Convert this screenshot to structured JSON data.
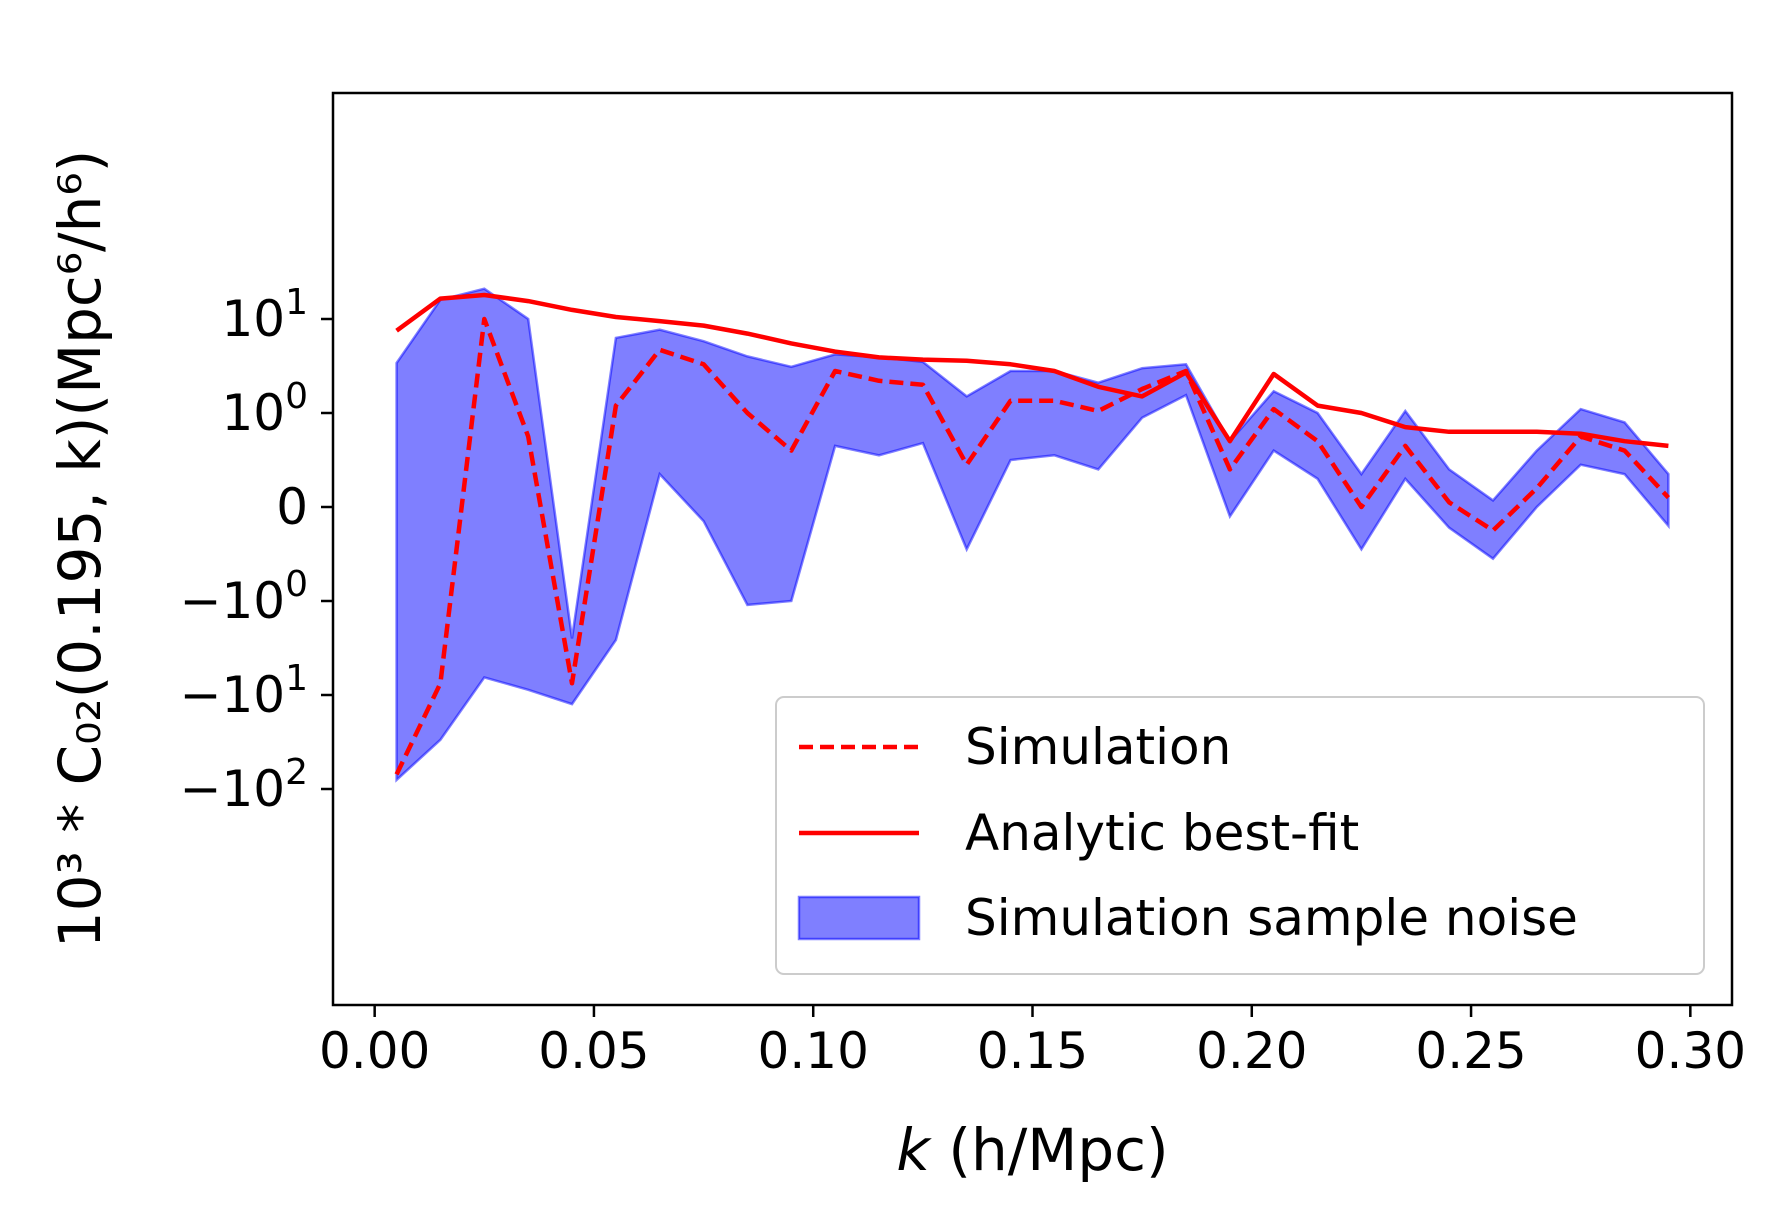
{
  "chart_data": {
    "type": "line",
    "title": "",
    "xlabel_var": "k",
    "xlabel_unit": " (h/Mpc)",
    "ylabel": "10³ * C₀₂(0.195, k)(Mpc⁶/h⁶)",
    "xlim": [
      -0.0095,
      0.3095
    ],
    "x_scale": "linear",
    "y_scale": "symlog",
    "y_linthresh": 1,
    "grid": false,
    "legend_position": "lower right",
    "x_ticks": [
      {
        "value": 0.0,
        "label": "0.00"
      },
      {
        "value": 0.05,
        "label": "0.05"
      },
      {
        "value": 0.1,
        "label": "0.10"
      },
      {
        "value": 0.15,
        "label": "0.15"
      },
      {
        "value": 0.2,
        "label": "0.20"
      },
      {
        "value": 0.25,
        "label": "0.25"
      },
      {
        "value": 0.3,
        "label": "0.30"
      }
    ],
    "y_ticks": [
      {
        "value": 10,
        "base": "10",
        "exp": "1"
      },
      {
        "value": 1,
        "base": "10",
        "exp": "0"
      },
      {
        "value": 0,
        "base": "0",
        "exp": ""
      },
      {
        "value": -1,
        "base": "−10",
        "exp": "0"
      },
      {
        "value": -10,
        "base": "−10",
        "exp": "1"
      },
      {
        "value": -100,
        "base": "−10",
        "exp": "2"
      }
    ],
    "x": [
      0.005,
      0.015,
      0.025,
      0.035,
      0.045,
      0.055,
      0.065,
      0.075,
      0.085,
      0.095,
      0.105,
      0.115,
      0.125,
      0.135,
      0.145,
      0.155,
      0.165,
      0.175,
      0.185,
      0.195,
      0.205,
      0.215,
      0.225,
      0.235,
      0.245,
      0.255,
      0.265,
      0.275,
      0.285,
      0.295
    ],
    "series": [
      {
        "name": "Simulation",
        "style": "dashed",
        "color": "#ff0000",
        "values": [
          -70,
          -7.5,
          10.0,
          0.75,
          -7.5,
          1.2,
          4.7,
          3.3,
          1.0,
          0.6,
          2.8,
          2.2,
          2.0,
          0.45,
          1.35,
          1.35,
          1.05,
          1.8,
          2.8,
          0.4,
          1.1,
          0.7,
          0.0,
          0.65,
          0.05,
          -0.25,
          0.2,
          0.75,
          0.6,
          0.1
        ]
      },
      {
        "name": "Analytic best-fit",
        "style": "solid",
        "color": "#ff0000",
        "values": [
          7.5,
          16.5,
          18.0,
          15.5,
          12.5,
          10.5,
          9.5,
          8.5,
          7.0,
          5.5,
          4.5,
          3.9,
          3.7,
          3.6,
          3.3,
          2.8,
          1.9,
          1.5,
          2.7,
          0.7,
          2.6,
          1.2,
          1.0,
          0.85,
          0.8,
          0.8,
          0.8,
          0.78,
          0.7,
          0.65
        ]
      }
    ],
    "band": {
      "name": "Simulation sample noise",
      "color": "#0000ff",
      "opacity": 0.5,
      "upper": [
        3.4,
        16.0,
        21.0,
        10.0,
        -2.5,
        6.3,
        7.7,
        5.8,
        4.0,
        3.1,
        4.2,
        3.9,
        3.5,
        1.5,
        2.8,
        2.8,
        2.1,
        3.0,
        3.3,
        0.7,
        1.7,
        1.0,
        0.35,
        1.05,
        0.4,
        0.07,
        0.6,
        1.1,
        0.9,
        0.35
      ],
      "lower": [
        -80,
        -30,
        -6.5,
        -8.8,
        -12.5,
        -2.6,
        0.35,
        -0.15,
        -1.1,
        -1.0,
        0.65,
        0.55,
        0.68,
        -0.45,
        0.5,
        0.55,
        0.4,
        0.95,
        1.55,
        -0.1,
        0.6,
        0.3,
        -0.45,
        0.3,
        -0.22,
        -0.55,
        0.0,
        0.45,
        0.35,
        -0.2
      ]
    }
  }
}
